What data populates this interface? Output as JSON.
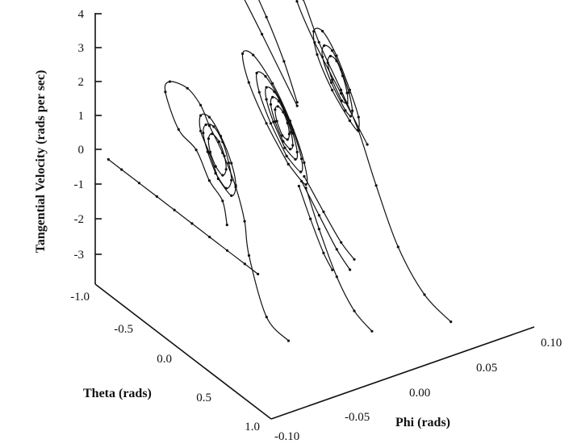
{
  "chart_data": {
    "type": "line",
    "title": "",
    "ylabel": "Tangential Velocity (rads per sec)",
    "theta_label": "Theta (rads)",
    "phi_label": "Phi (rads)",
    "y_ticks": [
      "4",
      "3",
      "2",
      "1",
      "0",
      "-1",
      "-2",
      "-3"
    ],
    "theta_ticks": [
      "-1.0",
      "-0.5",
      "0.0",
      "0.5",
      "1.0"
    ],
    "phi_ticks": [
      "-0.10",
      "-0.05",
      "0.00",
      "0.05",
      "0.10"
    ],
    "ylim": [
      -3.5,
      4
    ],
    "theta_range": [
      -1.0,
      1.0
    ],
    "phi_range": [
      -0.1,
      0.1
    ],
    "series": [
      {
        "phi": -0.1,
        "segments": [
          [
            [
              -0.85,
              0
            ],
            [
              -0.7,
              0
            ],
            [
              -0.5,
              0
            ],
            [
              -0.3,
              0
            ],
            [
              -0.1,
              0
            ],
            [
              0.1,
              0
            ],
            [
              0.3,
              0
            ],
            [
              0.5,
              0
            ],
            [
              0.7,
              0
            ],
            [
              0.85,
              0
            ]
          ]
        ]
      },
      {
        "phi": -0.05,
        "segments": [
          [
            [
              -0.25,
              -1.4
            ],
            [
              -0.3,
              -0.8
            ],
            [
              -0.45,
              -0.5
            ],
            [
              -0.6,
              0.1
            ],
            [
              -0.8,
              0.3
            ],
            [
              -0.95,
              1.1
            ],
            [
              -0.9,
              1.5
            ],
            [
              -0.7,
              1.7
            ],
            [
              -0.55,
              1.5
            ],
            [
              -0.45,
              1.1
            ],
            [
              -0.3,
              0.6
            ],
            [
              -0.15,
              -0.1
            ],
            [
              -0.05,
              -0.9
            ],
            [
              0.0,
              -1.8
            ],
            [
              0.2,
              -3.2
            ],
            [
              0.45,
              -3.4
            ]
          ],
          [
            [
              -0.35,
              -0.25
            ],
            [
              -0.45,
              0.3
            ],
            [
              -0.55,
              0.75
            ],
            [
              -0.55,
              1.2
            ],
            [
              -0.45,
              1.35
            ],
            [
              -0.32,
              1.05
            ],
            [
              -0.2,
              0.5
            ],
            [
              -0.15,
              -0.05
            ],
            [
              -0.2,
              -0.45
            ],
            [
              -0.35,
              -0.25
            ]
          ],
          [
            [
              -0.38,
              -0.15
            ],
            [
              -0.47,
              0.3
            ],
            [
              -0.52,
              0.75
            ],
            [
              -0.49,
              1.05
            ],
            [
              -0.4,
              1.17
            ],
            [
              -0.3,
              0.92
            ],
            [
              -0.23,
              0.45
            ],
            [
              -0.2,
              0.0
            ],
            [
              -0.26,
              -0.35
            ],
            [
              -0.38,
              -0.15
            ]
          ],
          [
            [
              -0.38,
              0.05
            ],
            [
              -0.44,
              0.35
            ],
            [
              -0.46,
              0.7
            ],
            [
              -0.42,
              0.92
            ],
            [
              -0.34,
              0.85
            ],
            [
              -0.28,
              0.55
            ],
            [
              -0.26,
              0.2
            ],
            [
              -0.3,
              -0.05
            ],
            [
              -0.38,
              0.05
            ]
          ]
        ]
      },
      {
        "phi": 0.0,
        "segments": [
          [
            [
              -0.2,
              1.5
            ],
            [
              -0.6,
              2.8
            ],
            [
              -0.95,
              3.9
            ],
            [
              -1.05,
              4.3
            ],
            [
              -0.98,
              4.45
            ],
            [
              -0.78,
              4.2
            ],
            [
              -0.55,
              3.4
            ],
            [
              -0.35,
              2.5
            ],
            [
              -0.2,
              1.6
            ]
          ],
          [
            [
              -0.3,
              -0.4
            ],
            [
              -0.55,
              0.3
            ],
            [
              -0.75,
              1.1
            ],
            [
              -0.82,
              1.8
            ],
            [
              -0.7,
              2.0
            ],
            [
              -0.48,
              1.6
            ],
            [
              -0.28,
              0.9
            ],
            [
              -0.12,
              0.0
            ],
            [
              -0.1,
              -0.6
            ],
            [
              -0.3,
              -0.4
            ]
          ],
          [
            [
              -0.32,
              -0.2
            ],
            [
              -0.5,
              0.4
            ],
            [
              -0.63,
              1.05
            ],
            [
              -0.66,
              1.55
            ],
            [
              -0.56,
              1.65
            ],
            [
              -0.4,
              1.3
            ],
            [
              -0.25,
              0.7
            ],
            [
              -0.15,
              0.05
            ],
            [
              -0.16,
              -0.35
            ],
            [
              -0.32,
              -0.2
            ]
          ],
          [
            [
              -0.34,
              0.0
            ],
            [
              -0.47,
              0.5
            ],
            [
              -0.55,
              1.0
            ],
            [
              -0.55,
              1.35
            ],
            [
              -0.46,
              1.4
            ],
            [
              -0.35,
              1.1
            ],
            [
              -0.25,
              0.6
            ],
            [
              -0.2,
              0.15
            ],
            [
              -0.22,
              -0.1
            ],
            [
              -0.34,
              0.0
            ]
          ],
          [
            [
              -0.36,
              0.15
            ],
            [
              -0.45,
              0.55
            ],
            [
              -0.5,
              0.95
            ],
            [
              -0.48,
              1.2
            ],
            [
              -0.41,
              1.22
            ],
            [
              -0.33,
              0.97
            ],
            [
              -0.27,
              0.6
            ],
            [
              -0.25,
              0.25
            ],
            [
              -0.28,
              0.08
            ],
            [
              -0.36,
              0.15
            ]
          ],
          [
            [
              -0.37,
              0.3
            ],
            [
              -0.43,
              0.6
            ],
            [
              -0.45,
              0.9
            ],
            [
              -0.42,
              1.05
            ],
            [
              -0.36,
              1.0
            ],
            [
              -0.31,
              0.78
            ],
            [
              -0.29,
              0.5
            ],
            [
              -0.31,
              0.3
            ],
            [
              -0.37,
              0.3
            ]
          ],
          [
            [
              -0.1,
              -0.7
            ],
            [
              0.05,
              -1.6
            ],
            [
              0.25,
              -2.6
            ],
            [
              0.45,
              -3.2
            ],
            [
              0.65,
              -3.4
            ]
          ],
          [
            [
              -0.15,
              -0.6
            ],
            [
              0.05,
              -1.2
            ],
            [
              0.25,
              -1.8
            ],
            [
              0.4,
              -2.1
            ]
          ],
          [
            [
              -0.12,
              -0.4
            ],
            [
              0.1,
              -1.0
            ],
            [
              0.3,
              -1.5
            ],
            [
              0.45,
              -1.7
            ]
          ],
          [
            [
              -0.18,
              -0.8
            ],
            [
              -0.05,
              -1.5
            ],
            [
              0.1,
              -2.2
            ],
            [
              0.2,
              -2.5
            ]
          ]
        ]
      },
      {
        "phi": 0.05,
        "segments": [
          [
            [
              -0.15,
              -0.2
            ],
            [
              -0.45,
              0.7
            ],
            [
              -0.75,
              1.6
            ],
            [
              -0.95,
              2.4
            ],
            [
              -0.98,
              2.8
            ],
            [
              -0.88,
              2.6
            ],
            [
              -0.7,
              1.7
            ],
            [
              -0.45,
              0.8
            ],
            [
              -0.25,
              0.0
            ],
            [
              -0.05,
              -1.2
            ],
            [
              0.2,
              -2.5
            ],
            [
              0.5,
              -3.3
            ],
            [
              0.8,
              -3.5
            ]
          ],
          [
            [
              -0.35,
              0.1
            ],
            [
              -0.55,
              0.6
            ],
            [
              -0.72,
              1.3
            ],
            [
              -0.76,
              1.9
            ],
            [
              -0.66,
              2.1
            ],
            [
              -0.5,
              1.7
            ],
            [
              -0.35,
              1.0
            ],
            [
              -0.25,
              0.4
            ],
            [
              -0.26,
              0.0
            ],
            [
              -0.35,
              0.1
            ]
          ],
          [
            [
              -0.4,
              0.3
            ],
            [
              -0.56,
              0.8
            ],
            [
              -0.66,
              1.35
            ],
            [
              -0.64,
              1.72
            ],
            [
              -0.55,
              1.75
            ],
            [
              -0.45,
              1.4
            ],
            [
              -0.36,
              0.9
            ],
            [
              -0.32,
              0.45
            ],
            [
              -0.34,
              0.25
            ],
            [
              -0.4,
              0.3
            ]
          ],
          [
            [
              -0.44,
              0.5
            ],
            [
              -0.55,
              0.9
            ],
            [
              -0.6,
              1.3
            ],
            [
              -0.57,
              1.55
            ],
            [
              -0.5,
              1.55
            ],
            [
              -0.43,
              1.25
            ],
            [
              -0.38,
              0.85
            ],
            [
              -0.38,
              0.55
            ],
            [
              -0.44,
              0.5
            ]
          ]
        ]
      }
    ]
  }
}
